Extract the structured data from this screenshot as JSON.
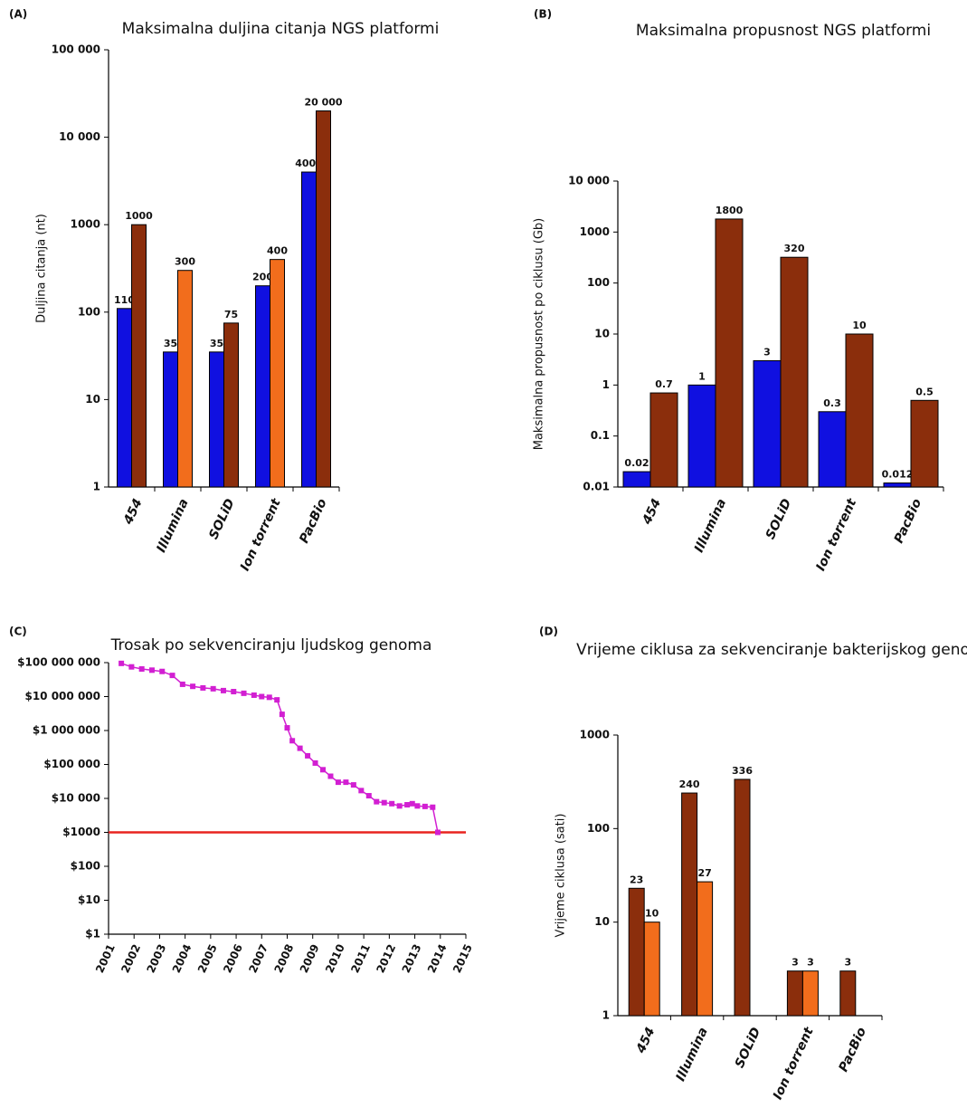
{
  "chart_data": [
    {
      "type": "bar",
      "panel_label": "(A)",
      "title": "Maksimalna duljina citanja NGS platformi",
      "ylabel": "Duljina citanja (nt)",
      "yscale": "log",
      "categories": [
        "454",
        "Illumina",
        "SOLiD",
        "Ion torrent",
        "PacBio"
      ],
      "series": [
        {
          "color": "#1010e0",
          "values": [
            110,
            35,
            35,
            200,
            4000
          ]
        },
        {
          "color": "#8b2e0c",
          "colors": [
            "#8b2e0c",
            "#f26d1c",
            "#8b2e0c",
            "#f26d1c",
            "#8b2e0c"
          ],
          "values": [
            1000,
            300,
            75,
            400,
            20000
          ],
          "value_labels": [
            "1000",
            "300",
            "75",
            "400",
            "20 000"
          ]
        }
      ],
      "ylim": [
        1,
        100000
      ],
      "yticks": [
        1,
        10,
        100,
        1000,
        {
          "value": 10000,
          "label": "10 000"
        },
        {
          "value": 100000,
          "label": "100 000"
        }
      ]
    },
    {
      "type": "bar",
      "panel_label": "(B)",
      "title": "Maksimalna propusnost NGS platformi",
      "ylabel": "Maksimalna propusnost po ciklusu (Gb)",
      "yscale": "log",
      "categories": [
        "454",
        "Illumina",
        "SOLiD",
        "Ion torrent",
        "PacBio"
      ],
      "series": [
        {
          "color": "#1010e0",
          "values": [
            0.02,
            1,
            3,
            0.3,
            0.012
          ]
        },
        {
          "color": "#8b2e0c",
          "values": [
            0.7,
            1800,
            320,
            10,
            0.5
          ]
        }
      ],
      "ylim": [
        0.01,
        10000
      ],
      "yticks": [
        0.01,
        0.1,
        1,
        10,
        100,
        1000,
        {
          "value": 10000,
          "label": "10 000"
        }
      ]
    },
    {
      "type": "line",
      "panel_label": "(C)",
      "title": "Trosak po sekvenciranju ljudskog genoma",
      "yscale": "log",
      "x": [
        2001.5,
        2001.9,
        2002.3,
        2002.7,
        2003.1,
        2003.5,
        2003.9,
        2004.3,
        2004.7,
        2005.1,
        2005.5,
        2005.9,
        2006.3,
        2006.7,
        2007.0,
        2007.3,
        2007.6,
        2007.8,
        2008.0,
        2008.2,
        2008.5,
        2008.8,
        2009.1,
        2009.4,
        2009.7,
        2010.0,
        2010.3,
        2010.6,
        2010.9,
        2011.2,
        2011.5,
        2011.8,
        2012.1,
        2012.4,
        2012.7,
        2012.9,
        2013.1,
        2013.4,
        2013.7,
        2013.9
      ],
      "series": [
        {
          "color": "#d21fd2",
          "values": [
            95000000,
            75000000,
            65000000,
            60000000,
            55000000,
            42000000,
            23000000,
            20000000,
            18000000,
            17000000,
            15000000,
            14000000,
            12500000,
            11000000,
            10000000,
            9500000,
            8000000,
            3000000,
            1200000,
            500000,
            300000,
            180000,
            110000,
            70000,
            45000,
            30000,
            30000,
            25000,
            17000,
            12000,
            8000,
            7500,
            7000,
            6000,
            6500,
            7000,
            6000,
            5800,
            5500,
            1000
          ]
        }
      ],
      "hlines": [
        {
          "value": 1000,
          "color": "#e8231f"
        }
      ],
      "xlim": [
        2001,
        2015
      ],
      "xticks": [
        2001,
        2002,
        2003,
        2004,
        2005,
        2006,
        2007,
        2008,
        2009,
        2010,
        2011,
        2012,
        2013,
        2014,
        2015
      ],
      "ylim": [
        1,
        100000000
      ],
      "yticks": [
        {
          "value": 1,
          "label": "$1"
        },
        {
          "value": 10,
          "label": "$10"
        },
        {
          "value": 100,
          "label": "$100"
        },
        {
          "value": 1000,
          "label": "$1000"
        },
        {
          "value": 10000,
          "label": "$10 000"
        },
        {
          "value": 100000,
          "label": "$100 000"
        },
        {
          "value": 1000000,
          "label": "$1 000 000"
        },
        {
          "value": 10000000,
          "label": "$10 000 000"
        },
        {
          "value": 100000000,
          "label": "$100 000 000"
        }
      ]
    },
    {
      "type": "bar",
      "panel_label": "(D)",
      "title": "Vrijeme ciklusa za sekvenciranje bakterijskog genoma",
      "ylabel": "Vrijeme ciklusa (sati)",
      "yscale": "log",
      "categories": [
        "454",
        "Illumina",
        "SOLiD",
        "Ion torrent",
        "PacBio"
      ],
      "series": [
        {
          "color": "#8b2e0c",
          "values": [
            23,
            240,
            336,
            3,
            3
          ]
        },
        {
          "color": "#f26d1c",
          "values": [
            10,
            27,
            null,
            3,
            null
          ]
        }
      ],
      "ylim": [
        1,
        1000
      ],
      "yticks": [
        1,
        10,
        100,
        1000
      ]
    }
  ]
}
